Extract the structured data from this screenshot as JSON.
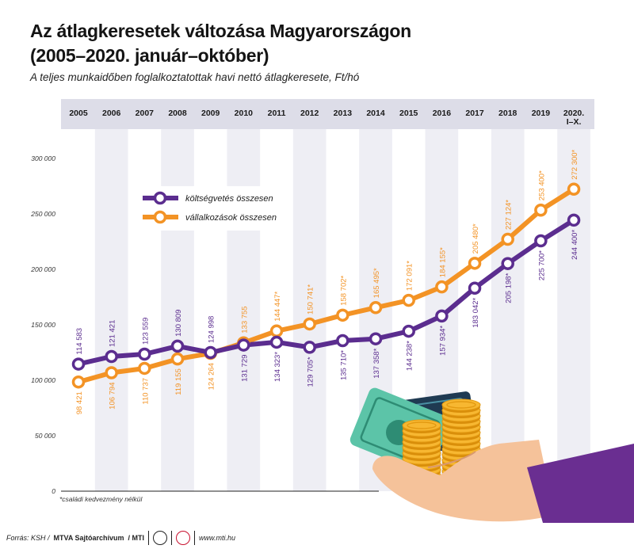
{
  "title_line1": "Az átlagkeresetek változása Magyarországon",
  "title_line2": "(2005–2020. január–október)",
  "subtitle": "A teljes munkaidőben foglalkoztatottak havi nettó átlagkeresete, Ft/hó",
  "footnote": "*családi kedvezmény nélkül",
  "footer": {
    "source_prefix": "Forrás: KSH /",
    "agency": "MTVA Sajtóarchívum",
    "mti": "/ MTI",
    "url": "www.mti.hu"
  },
  "colors": {
    "purple": "#5B2D8F",
    "orange": "#F39325",
    "band": "#EEEEF4",
    "header": "#DDDDE8"
  },
  "icons": [
    "coins-and-banknotes-illustration",
    "mtva-logo-icon",
    "mti-logo-icon"
  ],
  "chart_data": {
    "type": "line",
    "categories": [
      "2005",
      "2006",
      "2007",
      "2008",
      "2009",
      "2010",
      "2011",
      "2012",
      "2013",
      "2014",
      "2015",
      "2016",
      "2017",
      "2018",
      "2019",
      "2020."
    ],
    "category_sublabels": [
      "",
      "",
      "",
      "",
      "",
      "",
      "",
      "",
      "",
      "",
      "",
      "",
      "",
      "",
      "",
      "I–X."
    ],
    "ylim": [
      0,
      300000
    ],
    "yticks": [
      0,
      50000,
      100000,
      150000,
      200000,
      250000,
      300000
    ],
    "ytick_labels": [
      "0",
      "50 000",
      "100 000",
      "150 000",
      "200 000",
      "250 000",
      "300 000"
    ],
    "legend_position": "upper-left",
    "series": [
      {
        "name": "költségvetés összesen",
        "color": "#5B2D8F",
        "values": [
          114583,
          121421,
          123559,
          130809,
          124998,
          131729,
          134323,
          129705,
          135710,
          137358,
          144238,
          157934,
          183042,
          205198,
          225700,
          244400
        ],
        "labels": [
          "114 583",
          "121 421",
          "123 559",
          "130 809",
          "124 998",
          "131 729",
          "134 323*",
          "129 705*",
          "135 710*",
          "137 358*",
          "144 238*",
          "157 934*",
          "183 042*",
          "205 198*",
          "225 700*",
          "244 400*"
        ]
      },
      {
        "name": "vállalkozások összesen",
        "color": "#F39325",
        "values": [
          98421,
          106794,
          110737,
          119155,
          124264,
          133755,
          144447,
          150741,
          158702,
          165495,
          172091,
          184155,
          205480,
          227124,
          253400,
          272300
        ],
        "labels": [
          "98 421",
          "106 794",
          "110 737",
          "119 155",
          "124 264",
          "133 755",
          "144 447*",
          "150 741*",
          "158 702*",
          "165 495*",
          "172 091*",
          "184 155*",
          "205 480*",
          "227 124*",
          "253 400*",
          "272 300*"
        ]
      }
    ]
  }
}
